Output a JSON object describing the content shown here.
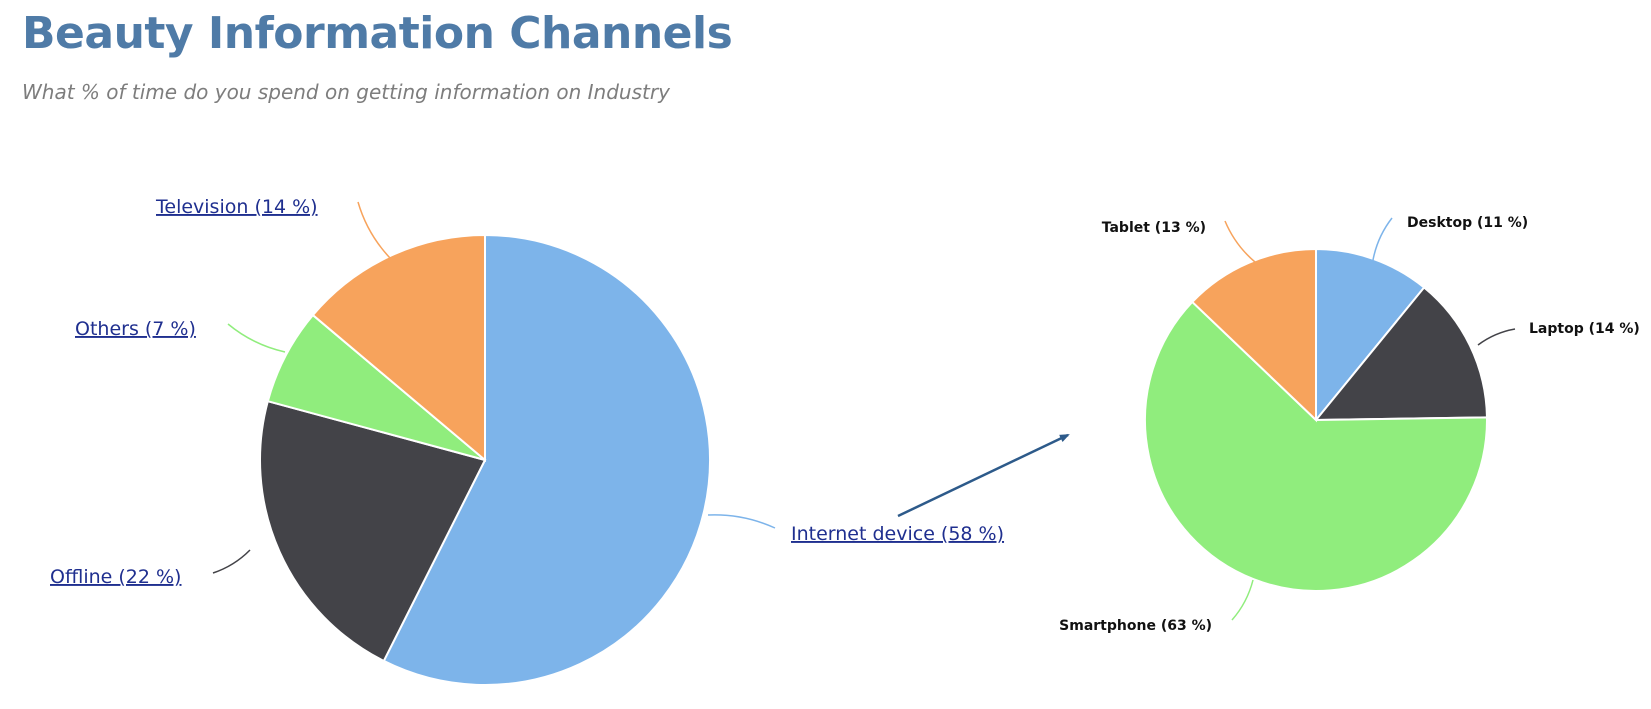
{
  "page": {
    "title": "Beauty Information Channels",
    "subtitle": "What % of time do you spend on getting information on Industry"
  },
  "colors": {
    "title": "#4f7ba7",
    "subtitle": "#7d7d7d",
    "link": "#1f2f8f",
    "arrow": "#2d5a8a"
  },
  "chart_data": [
    {
      "type": "pie",
      "slices": [
        {
          "label": "Internet device (58 %)",
          "value": 58,
          "color": "#7db4ea"
        },
        {
          "label": "Offline (22 %)",
          "value": 22,
          "color": "#434348"
        },
        {
          "label": "Others (7 %)",
          "value": 7,
          "color": "#90ed7d"
        },
        {
          "label": "Television (14 %)",
          "value": 14,
          "color": "#f7a35c"
        }
      ],
      "labels_are_links": true
    },
    {
      "type": "pie",
      "slices": [
        {
          "label": "Desktop (11 %)",
          "value": 11,
          "color": "#7db4ea"
        },
        {
          "label": "Laptop (14 %)",
          "value": 14,
          "color": "#434348"
        },
        {
          "label": "Smartphone (63 %)",
          "value": 63,
          "color": "#90ed7d"
        },
        {
          "label": "Tablet (13 %)",
          "value": 13,
          "color": "#f7a35c"
        }
      ],
      "labels_are_links": false
    }
  ]
}
